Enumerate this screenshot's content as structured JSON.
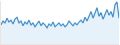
{
  "chart_data": {
    "type": "line",
    "color": "#3d8fd6",
    "categories": [
      null,
      null,
      null,
      null,
      null,
      null,
      null,
      null,
      null,
      null,
      null,
      null,
      null,
      null,
      null,
      null,
      null,
      null,
      null,
      null,
      null,
      null,
      null,
      null,
      null,
      null,
      null,
      null,
      null,
      null,
      null,
      null,
      null,
      null,
      null,
      null,
      null,
      null,
      null,
      null,
      null,
      null,
      null,
      null,
      null,
      null,
      null,
      null,
      null,
      null,
      null,
      null,
      null,
      null,
      null,
      null,
      null,
      null,
      null,
      null
    ],
    "values": [
      20,
      24,
      22,
      27,
      23,
      25,
      21,
      26,
      28,
      22,
      24,
      19,
      23,
      21,
      25,
      20,
      22,
      18,
      21,
      24,
      19,
      22,
      20,
      17,
      21,
      19,
      23,
      18,
      20,
      22,
      19,
      21,
      18,
      20,
      24,
      21,
      19,
      22,
      20,
      23,
      25,
      22,
      28,
      24,
      30,
      34,
      27,
      32,
      38,
      29,
      33,
      26,
      31,
      36,
      30,
      34,
      28,
      41,
      44,
      27
    ],
    "ylim": [
      0,
      45
    ],
    "grid": false,
    "tick_labels": false
  }
}
